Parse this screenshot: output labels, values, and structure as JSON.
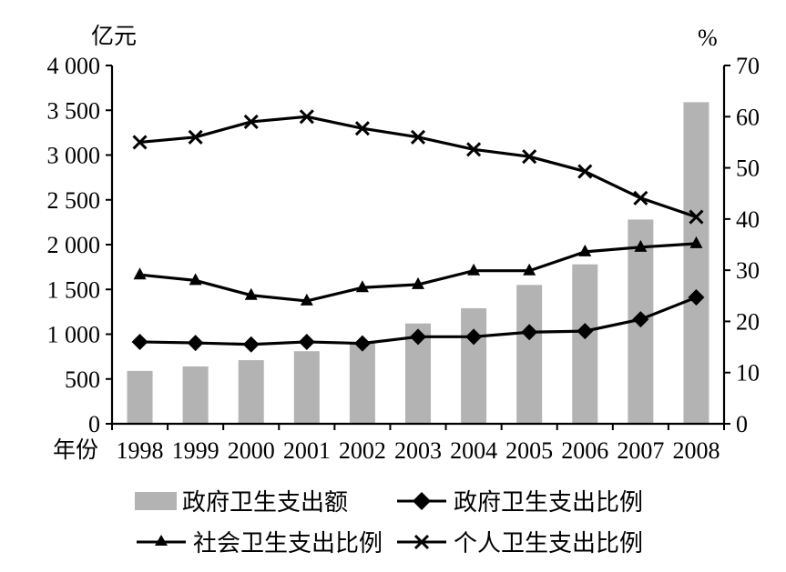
{
  "chart_data": {
    "type": "bar",
    "left_axis_unit": "亿元",
    "right_axis_unit": "%",
    "x_axis_label": "年份",
    "categories": [
      "1998",
      "1999",
      "2000",
      "2001",
      "2002",
      "2003",
      "2004",
      "2005",
      "2006",
      "2007",
      "2008"
    ],
    "left_ylim": [
      0,
      4000
    ],
    "left_ticks": [
      0,
      500,
      1000,
      1500,
      2000,
      2500,
      3000,
      3500,
      4000
    ],
    "left_tick_labels": [
      "0",
      "500",
      "1 000",
      "1 500",
      "2 000",
      "2 500",
      "3 000",
      "3 500",
      "4 000"
    ],
    "right_ylim": [
      0,
      70
    ],
    "right_ticks": [
      0,
      10,
      20,
      30,
      40,
      50,
      60,
      70
    ],
    "right_tick_labels": [
      "0",
      "10",
      "20",
      "30",
      "40",
      "50",
      "60",
      "70"
    ],
    "series": [
      {
        "name": "政府卫生支出额",
        "type": "bar",
        "axis": "left",
        "color": "#b3b3b3",
        "values": [
          590,
          640,
          710,
          810,
          910,
          1120,
          1290,
          1550,
          1780,
          2280,
          3590
        ]
      },
      {
        "name": "政府卫生支出比例",
        "type": "line",
        "axis": "right",
        "marker": "diamond",
        "values": [
          16.0,
          15.8,
          15.5,
          16.0,
          15.7,
          17.0,
          17.0,
          17.9,
          18.1,
          20.4,
          24.7
        ]
      },
      {
        "name": "社会卫生支出比例",
        "type": "line",
        "axis": "right",
        "marker": "triangle",
        "values": [
          29.1,
          28.0,
          25.1,
          24.0,
          26.6,
          27.2,
          29.9,
          29.9,
          33.6,
          34.5,
          35.2
        ]
      },
      {
        "name": "个人卫生支出比例",
        "type": "line",
        "axis": "right",
        "marker": "x",
        "values": [
          55.0,
          56.0,
          59.0,
          60.0,
          57.7,
          56.0,
          53.6,
          52.2,
          49.3,
          44.1,
          40.4
        ]
      }
    ],
    "grid": false,
    "legend_position": "bottom"
  },
  "legend": {
    "items": [
      {
        "label": "政府卫生支出额",
        "marker": "bar"
      },
      {
        "label": "政府卫生支出比例",
        "marker": "diamond"
      },
      {
        "label": "社会卫生支出比例",
        "marker": "triangle"
      },
      {
        "label": "个人卫生支出比例",
        "marker": "x"
      }
    ]
  }
}
